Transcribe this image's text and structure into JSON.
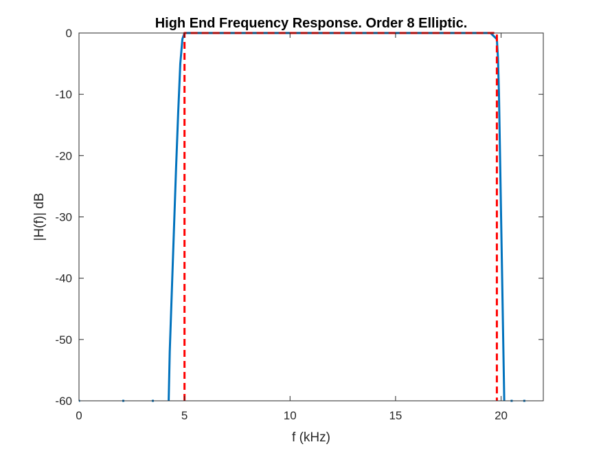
{
  "chart_data": {
    "type": "line",
    "title": "High End Frequency Response. Order 8 Elliptic.",
    "xlabel": "f (kHz)",
    "ylabel": "|H(f)| dB",
    "xlim": [
      0,
      22
    ],
    "ylim": [
      -60,
      0
    ],
    "xticks": [
      0,
      5,
      10,
      15,
      20
    ],
    "yticks": [
      0,
      -10,
      -20,
      -30,
      -40,
      -50,
      -60
    ],
    "grid": false,
    "legend": "none",
    "series": [
      {
        "color": "#0072BD",
        "style": "solid",
        "x": [
          4.25,
          4.3,
          4.4,
          4.5,
          4.6,
          4.7,
          4.8,
          4.9,
          5.0,
          6,
          8,
          10,
          12,
          14,
          16,
          18,
          19.5,
          19.8,
          19.85,
          19.9,
          19.95,
          20.0,
          20.05,
          20.1,
          20.15
        ],
        "y": [
          -60,
          -52,
          -42,
          -32,
          -22,
          -13,
          -5,
          -1,
          0,
          0,
          0,
          0,
          0,
          0,
          0,
          0,
          0,
          -1,
          -4,
          -10,
          -20,
          -30,
          -40,
          -50,
          -60
        ]
      },
      {
        "color": "#FF0000",
        "style": "dashed",
        "x": [
          5.0,
          5.0,
          19.8,
          19.8
        ],
        "y": [
          -60,
          0,
          0,
          -60
        ]
      }
    ],
    "stopband_ripple_points": {
      "color": "#0072BD",
      "x": [
        0,
        2.1,
        3.5,
        20.5,
        21.1
      ],
      "y": [
        -60,
        -60,
        -60,
        -60,
        -60
      ]
    }
  }
}
